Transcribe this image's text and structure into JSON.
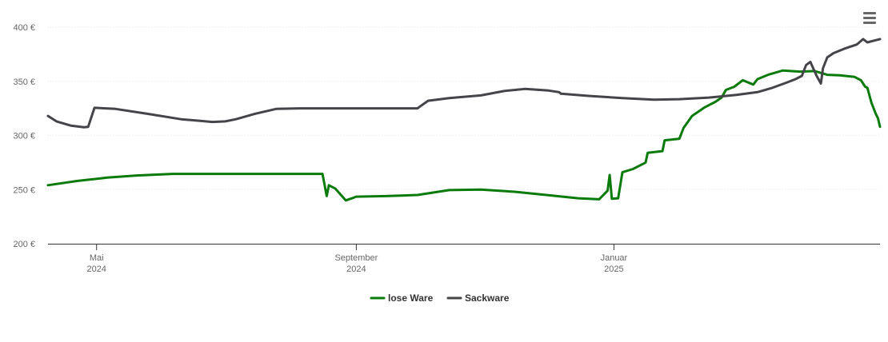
{
  "chart_data": {
    "type": "line",
    "title": "",
    "xlabel": "",
    "ylabel": "",
    "ylim": [
      200,
      400
    ],
    "y_ticks": [
      {
        "value": 200,
        "label": "200 €"
      },
      {
        "value": 250,
        "label": "250 €"
      },
      {
        "value": 300,
        "label": "300 €"
      },
      {
        "value": 350,
        "label": "350 €"
      },
      {
        "value": 400,
        "label": "400 €"
      }
    ],
    "x_ticks": [
      {
        "date": "2024-05-01",
        "label": "Mai",
        "sublabel": "2024"
      },
      {
        "date": "2024-09-01",
        "label": "September",
        "sublabel": "2024"
      },
      {
        "date": "2025-01-01",
        "label": "Januar",
        "sublabel": "2025"
      }
    ],
    "xlim": [
      "2024-04-08",
      "2025-05-07"
    ],
    "grid": true,
    "legend_position": "bottom-center",
    "series": [
      {
        "name": "lose Ware",
        "color": "#0a7a0a",
        "points": [
          [
            "2024-04-08",
            254
          ],
          [
            "2024-04-22",
            258
          ],
          [
            "2024-05-06",
            261
          ],
          [
            "2024-05-20",
            263
          ],
          [
            "2024-06-06",
            264.5
          ],
          [
            "2024-07-01",
            264.5
          ],
          [
            "2024-08-01",
            264.5
          ],
          [
            "2024-08-16",
            264.5
          ],
          [
            "2024-08-18",
            244
          ],
          [
            "2024-08-19",
            254
          ],
          [
            "2024-08-22",
            251
          ],
          [
            "2024-08-27",
            240
          ],
          [
            "2024-08-30",
            242
          ],
          [
            "2024-09-01",
            243.5
          ],
          [
            "2024-09-15",
            244
          ],
          [
            "2024-09-30",
            245
          ],
          [
            "2024-10-15",
            249.5
          ],
          [
            "2024-10-30",
            250
          ],
          [
            "2024-11-15",
            248
          ],
          [
            "2024-11-30",
            245
          ],
          [
            "2024-12-15",
            242
          ],
          [
            "2024-12-25",
            241
          ],
          [
            "2025-01-03",
            242
          ],
          [
            "2024-12-31",
            241.5
          ],
          [
            "2024-12-29",
            249
          ],
          [
            "2024-12-30",
            263.5
          ],
          [
            "2025-01-05",
            266
          ],
          [
            "2025-01-10",
            269
          ],
          [
            "2025-01-16",
            275
          ],
          [
            "2025-01-17",
            284
          ],
          [
            "2025-01-24",
            285.5
          ],
          [
            "2025-01-25",
            295.5
          ],
          [
            "2025-02-01",
            297
          ],
          [
            "2025-02-03",
            307
          ],
          [
            "2025-02-07",
            318
          ],
          [
            "2025-02-13",
            326
          ],
          [
            "2025-02-18",
            331
          ],
          [
            "2025-02-21",
            335
          ],
          [
            "2025-02-23",
            342
          ],
          [
            "2025-02-27",
            345
          ],
          [
            "2025-03-03",
            351
          ],
          [
            "2025-03-08",
            347
          ],
          [
            "2025-03-10",
            352
          ],
          [
            "2025-03-15",
            356
          ],
          [
            "2025-03-22",
            360
          ],
          [
            "2025-03-30",
            359
          ],
          [
            "2025-04-06",
            359.5
          ],
          [
            "2025-04-12",
            356
          ],
          [
            "2025-04-18",
            355.5
          ],
          [
            "2025-04-25",
            354
          ],
          [
            "2025-04-28",
            351
          ],
          [
            "2025-04-30",
            345
          ],
          [
            "2025-05-01",
            344
          ],
          [
            "2025-05-03",
            330
          ],
          [
            "2025-05-05",
            320
          ],
          [
            "2025-05-06",
            316
          ],
          [
            "2025-05-07",
            308
          ]
        ]
      },
      {
        "name": "Sackware",
        "color": "#444449",
        "points": [
          [
            "2024-04-08",
            318
          ],
          [
            "2024-04-12",
            313
          ],
          [
            "2024-04-19",
            309
          ],
          [
            "2024-04-25",
            307.5
          ],
          [
            "2024-04-27",
            308
          ],
          [
            "2024-04-30",
            325.5
          ],
          [
            "2024-05-10",
            324.5
          ],
          [
            "2024-05-25",
            320
          ],
          [
            "2024-06-10",
            315
          ],
          [
            "2024-06-25",
            312.5
          ],
          [
            "2024-07-01",
            313
          ],
          [
            "2024-07-06",
            315
          ],
          [
            "2024-07-15",
            320
          ],
          [
            "2024-07-25",
            324.5
          ],
          [
            "2024-08-05",
            325
          ],
          [
            "2024-09-01",
            325
          ],
          [
            "2024-09-30",
            325
          ],
          [
            "2024-10-01",
            326.5
          ],
          [
            "2024-10-05",
            332
          ],
          [
            "2024-10-15",
            334.5
          ],
          [
            "2024-10-30",
            337
          ],
          [
            "2024-11-10",
            341
          ],
          [
            "2024-11-20",
            343
          ],
          [
            "2024-12-01",
            341.5
          ],
          [
            "2024-12-06",
            340
          ],
          [
            "2024-12-07",
            338.5
          ],
          [
            "2024-12-20",
            336.5
          ],
          [
            "2025-01-05",
            334.5
          ],
          [
            "2025-01-20",
            333
          ],
          [
            "2025-02-01",
            333.5
          ],
          [
            "2025-02-15",
            335
          ],
          [
            "2025-02-28",
            337.5
          ],
          [
            "2025-03-10",
            340
          ],
          [
            "2025-03-17",
            344
          ],
          [
            "2025-03-24",
            349
          ],
          [
            "2025-03-28",
            352
          ],
          [
            "2025-03-31",
            355
          ],
          [
            "2025-04-02",
            365
          ],
          [
            "2025-04-04",
            368
          ],
          [
            "2025-04-07",
            355
          ],
          [
            "2025-04-09",
            348
          ],
          [
            "2025-04-10",
            362
          ],
          [
            "2025-04-12",
            372
          ],
          [
            "2025-04-15",
            376
          ],
          [
            "2025-04-20",
            380
          ],
          [
            "2025-04-26",
            384
          ],
          [
            "2025-05-01",
            386
          ],
          [
            "2025-05-05",
            388
          ],
          [
            "2025-05-07",
            389
          ],
          [
            "2025-04-29",
            389
          ]
        ]
      }
    ]
  }
}
